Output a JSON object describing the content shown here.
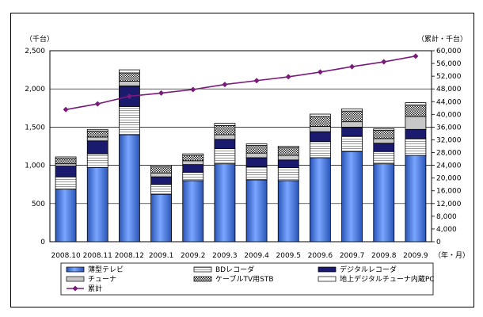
{
  "chart_data": {
    "type": "bar",
    "stacked": true,
    "categories": [
      "2008.10",
      "2008.11",
      "2008.12",
      "2009.1",
      "2009.2",
      "2009.3",
      "2009.4",
      "2009.5",
      "2009.6",
      "2009.7",
      "2009.8",
      "2009.9"
    ],
    "series": [
      {
        "name": "薄型テレビ",
        "color": "#3b6fd6",
        "pattern": "gradient",
        "values": [
          690,
          970,
          1400,
          620,
          800,
          1020,
          810,
          800,
          1100,
          1180,
          1020,
          1130
        ]
      },
      {
        "name": "BDレコーダ",
        "color": "#ffffff",
        "pattern": "hlines",
        "values": [
          160,
          180,
          370,
          130,
          110,
          200,
          170,
          170,
          210,
          200,
          160,
          220
        ]
      },
      {
        "name": "デジタルレコーダ",
        "color": "#1a1a6e",
        "pattern": "solid",
        "values": [
          140,
          170,
          270,
          100,
          100,
          120,
          120,
          100,
          130,
          120,
          110,
          120
        ]
      },
      {
        "name": "チューナ",
        "color": "#c8c8c8",
        "pattern": "solid",
        "values": [
          30,
          50,
          60,
          50,
          50,
          60,
          60,
          60,
          70,
          70,
          60,
          170
        ]
      },
      {
        "name": "ケーブルTV用STB",
        "color": "#ffffff",
        "pattern": "checker",
        "values": [
          70,
          80,
          110,
          80,
          70,
          120,
          100,
          100,
          130,
          140,
          110,
          150
        ]
      },
      {
        "name": "地上デジタルチューナ内蔵PC",
        "color": "#ffffff",
        "pattern": "solid",
        "values": [
          20,
          20,
          40,
          20,
          20,
          30,
          20,
          20,
          30,
          30,
          20,
          30
        ]
      }
    ],
    "line": {
      "name": "累計",
      "axis": "right",
      "color": "#7a1a7a",
      "values": [
        41500,
        43300,
        45700,
        46700,
        47800,
        49400,
        50600,
        51800,
        53300,
        55000,
        56500,
        58300
      ]
    },
    "y_left": {
      "label": "（千台）",
      "min": 0,
      "max": 2500,
      "ticks": [
        "0",
        "500",
        "1,000",
        "1,500",
        "2,000",
        "2,500"
      ]
    },
    "y_right": {
      "label": "（累計・千台）",
      "min": 0,
      "max": 60000,
      "ticks": [
        "0",
        "4,000",
        "8,000",
        "12,000",
        "16,000",
        "20,000",
        "24,000",
        "28,000",
        "32,000",
        "36,000",
        "40,000",
        "44,000",
        "48,000",
        "52,000",
        "56,000",
        "60,000"
      ]
    },
    "xlabel": "（年・月）",
    "grid": true,
    "legend_position": "bottom"
  }
}
